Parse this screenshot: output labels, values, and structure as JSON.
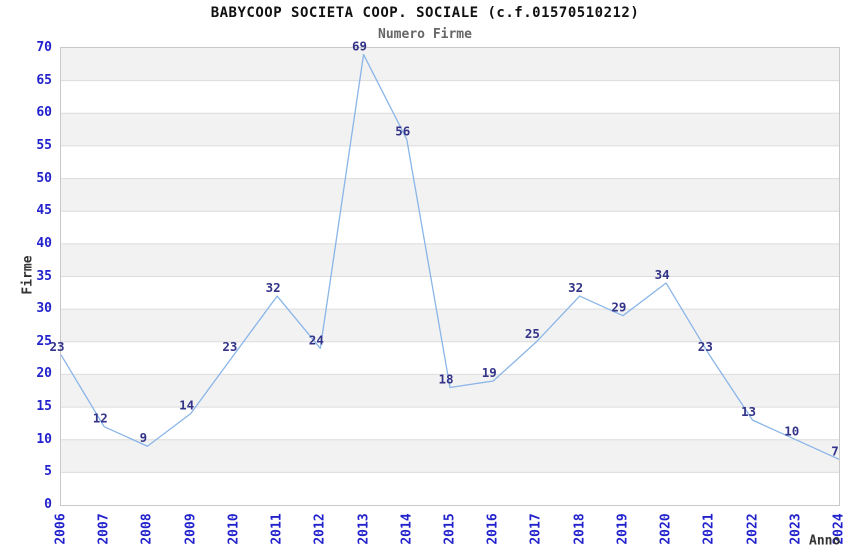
{
  "chart_data": {
    "type": "line",
    "title": "BABYCOOP SOCIETA COOP. SOCIALE (c.f.01570510212)",
    "subtitle": "Numero Firme",
    "xlabel": "Anno",
    "ylabel": "Firme",
    "x": [
      2006,
      2007,
      2008,
      2009,
      2010,
      2011,
      2012,
      2013,
      2014,
      2015,
      2016,
      2017,
      2018,
      2019,
      2020,
      2021,
      2022,
      2023,
      2024
    ],
    "series": [
      {
        "name": "Numero Firme",
        "values": [
          23,
          12,
          9,
          14,
          23,
          32,
          24,
          69,
          56,
          18,
          19,
          25,
          32,
          29,
          34,
          23,
          13,
          10,
          7
        ]
      }
    ],
    "ylim": [
      0,
      70
    ],
    "ytick_step": 5,
    "data_labels_shown": true,
    "legend": "none",
    "grid": "horizontal-bands-alternating",
    "colors": {
      "line": "#8ab5e8",
      "data_label": "#333388",
      "tick_label": "#2222cc",
      "band_gray": "#f2f2f2",
      "grid_line": "#dcdcdc",
      "plot_border": "#c9c9c9",
      "title": "#111111",
      "subtitle": "#666666",
      "axis_title": "#333333",
      "background": "#ffffff"
    }
  }
}
